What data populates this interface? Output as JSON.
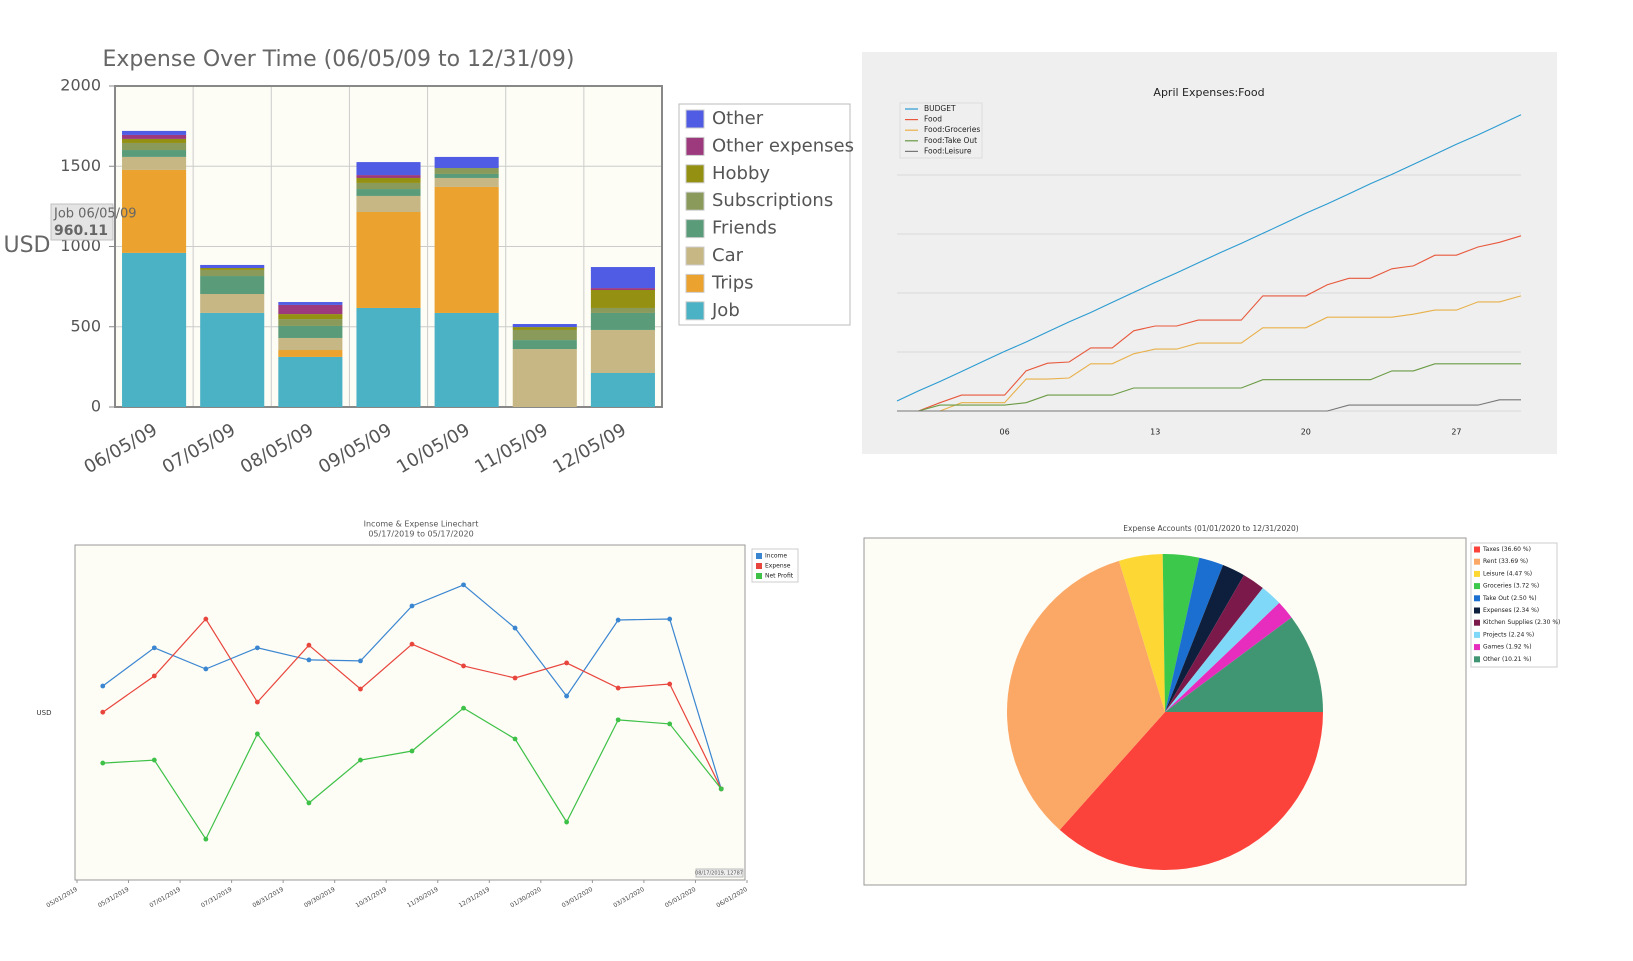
{
  "chart_data": [
    {
      "type": "bar",
      "stacked": true,
      "title": "Expense Over Time (06/05/09 to 12/31/09)",
      "y_label": "USD",
      "categories": [
        "06/05/09",
        "07/05/09",
        "08/05/09",
        "09/05/09",
        "10/05/09",
        "11/05/09",
        "12/05/09"
      ],
      "series": [
        {
          "name": "Job",
          "color": "#4bb1c5",
          "values": [
            960.11,
            586,
            312,
            617,
            586,
            0,
            212
          ]
        },
        {
          "name": "Trips",
          "color": "#eba22e",
          "values": [
            517,
            0,
            43,
            598,
            785,
            0,
            0
          ]
        },
        {
          "name": "Car",
          "color": "#c7b784",
          "values": [
            81,
            118,
            75,
            100,
            56,
            361,
            268
          ]
        },
        {
          "name": "Friends",
          "color": "#5a9c7a",
          "values": [
            43,
            112,
            75,
            43,
            25,
            56,
            106
          ]
        },
        {
          "name": "Subscriptions",
          "color": "#8a9a5b",
          "values": [
            44,
            38,
            43,
            38,
            37,
            63,
            31
          ]
        },
        {
          "name": "Hobby",
          "color": "#949012",
          "values": [
            25,
            12,
            31,
            31,
            0,
            18,
            112
          ]
        },
        {
          "name": "Other expenses",
          "color": "#9c3a7d",
          "values": [
            25,
            0,
            57,
            18,
            0,
            0,
            12
          ]
        },
        {
          "name": "Other",
          "color": "#4f5ce3",
          "values": [
            25,
            19,
            18,
            81,
            69,
            19,
            131
          ]
        }
      ],
      "ylim": [
        0,
        2000
      ],
      "yticks": [
        0,
        500,
        1000,
        1500,
        2000
      ],
      "grid": true,
      "legend": "right",
      "tooltip": {
        "title": "Job 06/05/09"
      }
    },
    {
      "type": "line",
      "title": "April Expenses:Food",
      "x": [
        1,
        2,
        3,
        4,
        5,
        6,
        7,
        8,
        9,
        10,
        11,
        12,
        13,
        14,
        15,
        16,
        17,
        18,
        19,
        20,
        21,
        22,
        23,
        24,
        25,
        26,
        27,
        28,
        29,
        30
      ],
      "series": [
        {
          "name": "BUDGET",
          "color": "#2b9bd1",
          "values": [
            17,
            34,
            50,
            67,
            84,
            101,
            117,
            134,
            151,
            167,
            184,
            201,
            218,
            234,
            251,
            268,
            284,
            301,
            318,
            335,
            351,
            368,
            385,
            401,
            418,
            435,
            452,
            468,
            485,
            502
          ]
        },
        {
          "name": "Food",
          "color": "#e8583c",
          "values": [
            0,
            0,
            14,
            27,
            27,
            27,
            68,
            81,
            83,
            107,
            107,
            136,
            144,
            144,
            154,
            154,
            154,
            195,
            195,
            195,
            214,
            225,
            225,
            241,
            246,
            264,
            264,
            278,
            286,
            297
          ]
        },
        {
          "name": "Food:Groceries",
          "color": "#e8b04a",
          "values": [
            0,
            0,
            0,
            14,
            14,
            14,
            54,
            54,
            56,
            80,
            80,
            97,
            105,
            105,
            115,
            115,
            115,
            141,
            141,
            141,
            159,
            159,
            159,
            159,
            164,
            171,
            171,
            185,
            185,
            195
          ]
        },
        {
          "name": "Food:Take Out",
          "color": "#6a9a43",
          "values": [
            0,
            0,
            10,
            10,
            10,
            10,
            14,
            27,
            27,
            27,
            27,
            39,
            39,
            39,
            39,
            39,
            39,
            53,
            53,
            53,
            53,
            53,
            53,
            68,
            68,
            80,
            80,
            80,
            80,
            80
          ]
        },
        {
          "name": "Food:Leisure",
          "color": "#777777",
          "values": [
            0,
            0,
            0,
            0,
            0,
            0,
            0,
            0,
            0,
            0,
            0,
            0,
            0,
            0,
            0,
            0,
            0,
            0,
            0,
            0,
            0,
            10,
            10,
            10,
            10,
            10,
            10,
            10,
            19,
            19
          ]
        }
      ],
      "xlim": [
        1,
        30
      ],
      "xticks": [
        {
          "value": 6,
          "label": "06"
        },
        {
          "value": 13,
          "label": "13"
        },
        {
          "value": 20,
          "label": "20"
        },
        {
          "value": 27,
          "label": "27"
        }
      ],
      "ylim": [
        0,
        500
      ],
      "yticks": [
        0,
        100,
        200,
        300,
        400
      ],
      "show_ytick_labels": false,
      "grid": true,
      "legend": "upper left"
    },
    {
      "type": "line",
      "title": "Income & Expense Linechart",
      "subtitle": "05/17/2019 to 05/17/2020",
      "y_label": "USD",
      "markers": true,
      "x": [
        0.5,
        1.5,
        2.5,
        3.5,
        4.5,
        5.5,
        6.5,
        7.5,
        8.5,
        9.5,
        10.5,
        11.5,
        12.5
      ],
      "series": [
        {
          "name": "Income",
          "color": "#3a86d1",
          "values": [
            57.9,
            69.3,
            63.0,
            69.3,
            65.7,
            65.4,
            81.8,
            88.1,
            75.2,
            54.9,
            77.6,
            77.9,
            27.2
          ]
        },
        {
          "name": "Expense",
          "color": "#e8453c",
          "values": [
            50.1,
            60.9,
            77.9,
            53.1,
            70.1,
            57.0,
            70.4,
            63.9,
            60.3,
            64.8,
            57.3,
            58.5,
            27.2
          ]
        },
        {
          "name": "Net Profit",
          "color": "#3dc147",
          "values": [
            34.9,
            35.8,
            12.2,
            43.6,
            23.0,
            35.8,
            38.5,
            51.3,
            42.1,
            17.3,
            47.8,
            46.6,
            27.2
          ]
        }
      ],
      "xlim": [
        0,
        13
      ],
      "xticks": [
        {
          "value": 0,
          "label": "05/01/2019"
        },
        {
          "value": 1,
          "label": "05/31/2019"
        },
        {
          "value": 2,
          "label": "07/01/2019"
        },
        {
          "value": 3,
          "label": "07/31/2019"
        },
        {
          "value": 4,
          "label": "08/31/2019"
        },
        {
          "value": 5,
          "label": "09/30/2019"
        },
        {
          "value": 6,
          "label": "10/31/2019"
        },
        {
          "value": 7,
          "label": "11/30/2019"
        },
        {
          "value": 8,
          "label": "12/31/2019"
        },
        {
          "value": 9,
          "label": "01/30/2020"
        },
        {
          "value": 10,
          "label": "03/01/2020"
        },
        {
          "value": 11,
          "label": "03/31/2020"
        },
        {
          "value": 12,
          "label": "05/01/2020"
        },
        {
          "value": 13,
          "label": "06/01/2020"
        }
      ],
      "ylim": [
        0,
        100
      ],
      "legend": "upper right",
      "annotation": "08/17/2019, 12787"
    },
    {
      "type": "pie",
      "title": "Expense Accounts (01/01/2020 to 12/31/2020)",
      "categories": [
        "Taxes (36.60 %)",
        "Rent (33.69 %)",
        "Leisure (4.47 %)",
        "Groceries (3.72 %)",
        "Take Out (2.50 %)",
        "Expenses (2.34 %)",
        "Kitchen Supplies (2.30 %)",
        "Projects (2.24 %)",
        "Games (1.92 %)",
        "Other (10.21 %)"
      ],
      "values": [
        36.6,
        33.69,
        4.47,
        3.72,
        2.5,
        2.34,
        2.3,
        2.24,
        1.92,
        10.21
      ],
      "colors": [
        "#fc433b",
        "#fba866",
        "#fdd835",
        "#3cc84a",
        "#1b6fd1",
        "#0d1f3c",
        "#7b1a4a",
        "#7fd8f7",
        "#e62dbd",
        "#409672"
      ],
      "legend": "right"
    }
  ]
}
